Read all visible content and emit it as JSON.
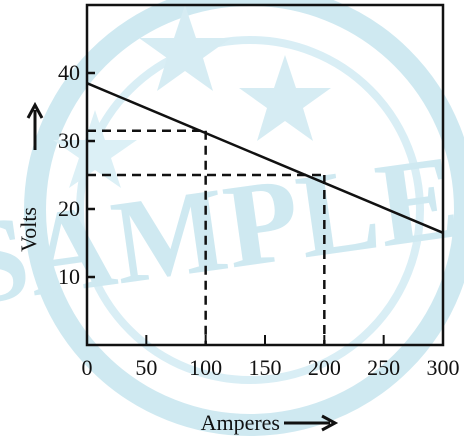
{
  "chart_data": {
    "type": "line",
    "title": "",
    "xlabel": "Amperes",
    "ylabel": "Volts",
    "xlim": [
      0,
      300
    ],
    "ylim": [
      0,
      50
    ],
    "x_ticks": [
      0,
      50,
      100,
      150,
      200,
      250,
      300
    ],
    "y_ticks": [
      10,
      20,
      30,
      40
    ],
    "x_tick_labels": [
      "0",
      "50",
      "100",
      "150",
      "200",
      "250",
      "300"
    ],
    "y_tick_labels": [
      "10",
      "20",
      "30",
      "40"
    ],
    "grid": false,
    "legend": "none",
    "series": [
      {
        "x": [
          0,
          300
        ],
        "y": [
          38.5,
          16.5
        ]
      }
    ],
    "reference_points": [
      {
        "x": 100,
        "y": 31.5
      },
      {
        "x": 200,
        "y": 25
      }
    ],
    "watermark": "SAMPLE"
  },
  "colors": {
    "line": "#111111",
    "watermark": "#cfe9f1"
  }
}
